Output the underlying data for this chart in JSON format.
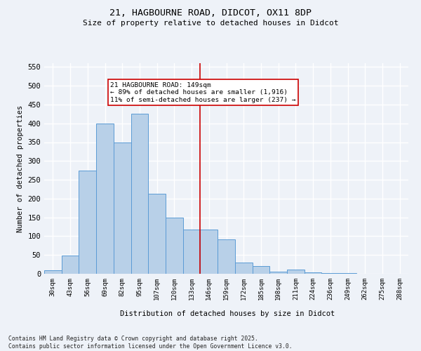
{
  "title_line1": "21, HAGBOURNE ROAD, DIDCOT, OX11 8DP",
  "title_line2": "Size of property relative to detached houses in Didcot",
  "xlabel": "Distribution of detached houses by size in Didcot",
  "ylabel": "Number of detached properties",
  "footer": "Contains HM Land Registry data © Crown copyright and database right 2025.\nContains public sector information licensed under the Open Government Licence v3.0.",
  "bar_labels": [
    "30sqm",
    "43sqm",
    "56sqm",
    "69sqm",
    "82sqm",
    "95sqm",
    "107sqm",
    "120sqm",
    "133sqm",
    "146sqm",
    "159sqm",
    "172sqm",
    "185sqm",
    "198sqm",
    "211sqm",
    "224sqm",
    "236sqm",
    "249sqm",
    "262sqm",
    "275sqm",
    "288sqm"
  ],
  "bar_values": [
    10,
    48,
    275,
    400,
    350,
    425,
    212,
    150,
    118,
    118,
    92,
    30,
    20,
    6,
    12,
    3,
    1,
    1,
    0,
    0,
    0
  ],
  "bar_color": "#b8d0e8",
  "bar_edge_color": "#5b9bd5",
  "vline_x_index": 9.0,
  "vline_color": "#cc0000",
  "annotation_text": "21 HAGBOURNE ROAD: 149sqm\n← 89% of detached houses are smaller (1,916)\n11% of semi-detached houses are larger (237) →",
  "annotation_box_color": "#ffffff",
  "annotation_box_edge": "#cc0000",
  "ylim": [
    0,
    560
  ],
  "yticks": [
    0,
    50,
    100,
    150,
    200,
    250,
    300,
    350,
    400,
    450,
    500,
    550
  ],
  "background_color": "#eef2f8",
  "grid_color": "#ffffff",
  "figsize": [
    6.0,
    5.0
  ],
  "dpi": 100
}
